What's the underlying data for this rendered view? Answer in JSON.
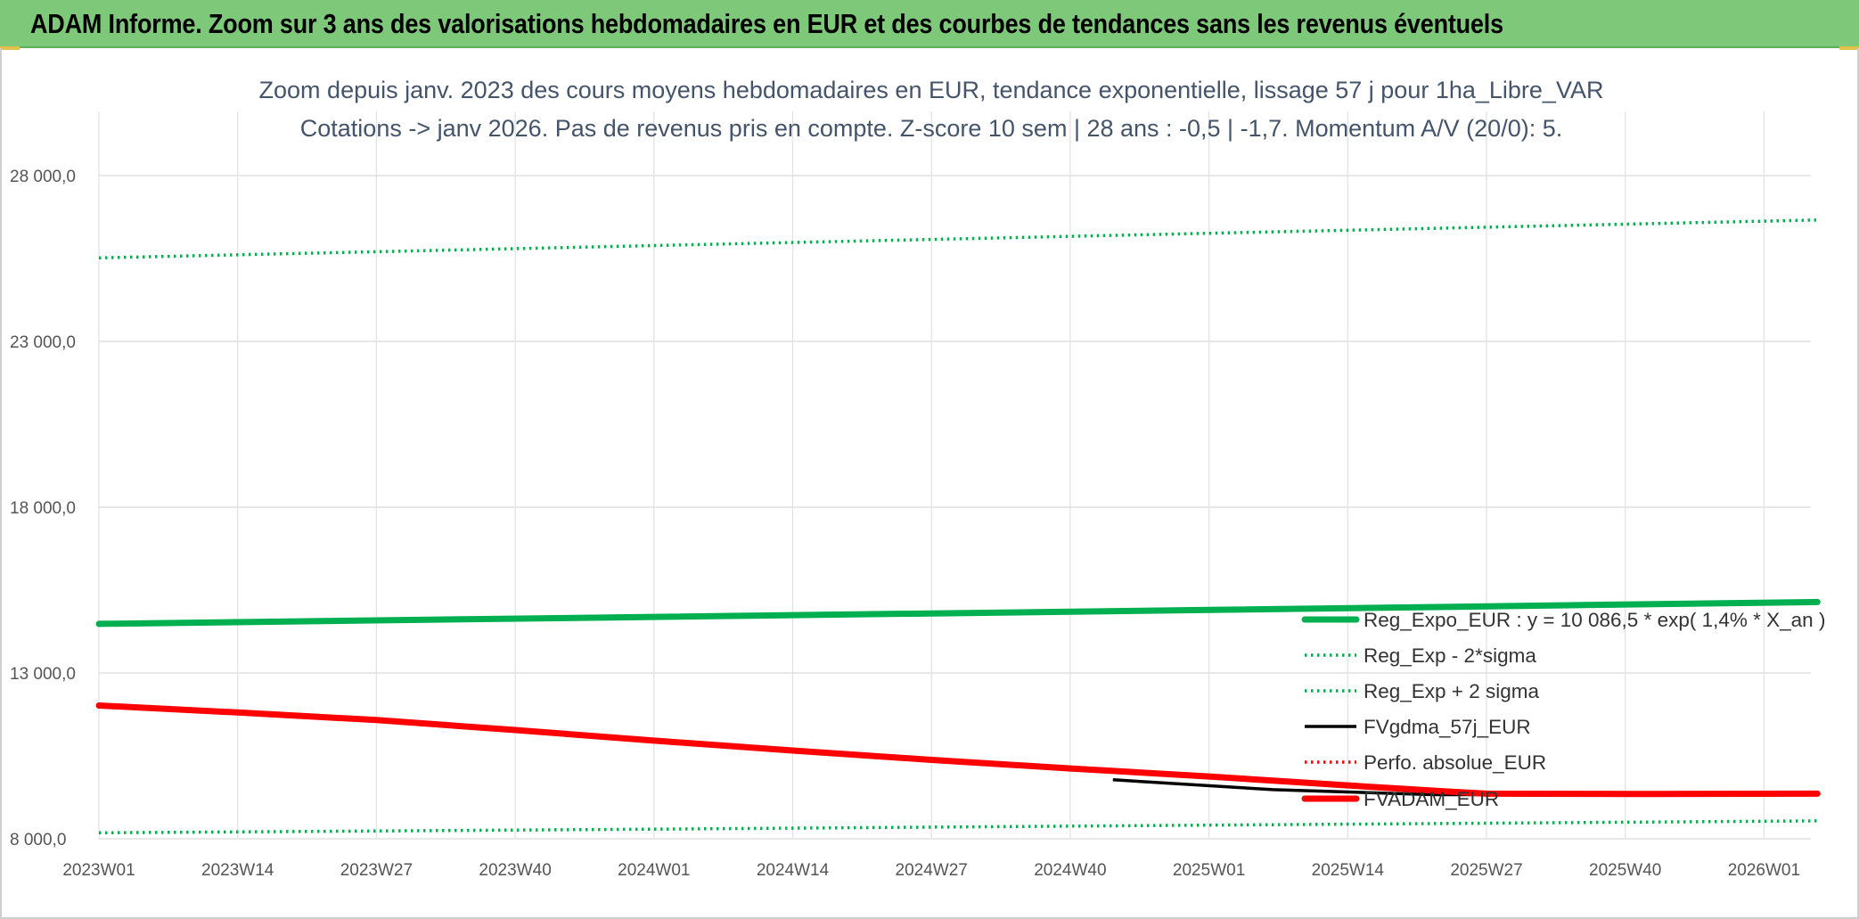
{
  "banner": {
    "title": "ADAM Informe. Zoom sur 3 ans des valorisations hebdomadaires en EUR et des courbes de tendances sans les revenus éventuels"
  },
  "colors": {
    "banner_bg": "#7ec87a",
    "green": "#00b050",
    "red": "#ff0000",
    "black": "#000000"
  },
  "chart_data": {
    "type": "line",
    "title_line1": "Zoom depuis janv. 2023 des cours moyens hebdomadaires en EUR, tendance exponentielle, lissage 57 j pour 1ha_Libre_VAR",
    "title_line2": "Cotations -> janv 2026. Pas de revenus pris en compte. Z-score 10 sem | 28 ans : -0,5 | -1,7. Momentum A/V (20/0): 5.",
    "x_ticks": [
      "2023W01",
      "2023W14",
      "2023W27",
      "2023W40",
      "2024W01",
      "2024W14",
      "2024W27",
      "2024W40",
      "2025W01",
      "2025W14",
      "2025W27",
      "2025W40",
      "2026W01"
    ],
    "x_range_weeks": [
      0,
      161
    ],
    "y_ticks": [
      "28 000,0",
      "23 000,0",
      "18 000,0",
      "13 000,0",
      "8 000,0"
    ],
    "ylim": [
      8000,
      28000
    ],
    "grid": true,
    "legend_position": "bottom-right inside plot",
    "series": [
      {
        "name": "Reg_Expo_EUR : y = 10 086,5 * exp( 1,4% *  X_an )",
        "style": "solid-thick",
        "color": "#00b050",
        "x_week": [
          0,
          52,
          104,
          161
        ],
        "values": [
          14480,
          14690,
          14900,
          15140
        ]
      },
      {
        "name": "Reg_Exp - 2*sigma",
        "style": "dotted",
        "color": "#00b050",
        "x_week": [
          0,
          52,
          104,
          161
        ],
        "values": [
          8180,
          8290,
          8410,
          8540
        ]
      },
      {
        "name": "Reg_Exp + 2 sigma",
        "style": "dotted",
        "color": "#00b050",
        "x_week": [
          0,
          52,
          104,
          161
        ],
        "values": [
          25520,
          25890,
          26260,
          26660
        ]
      },
      {
        "name": "FVgdma_57j_EUR",
        "style": "solid",
        "color": "#000000",
        "x_week": [
          95,
          110,
          125,
          140,
          161
        ],
        "values": [
          9780,
          9480,
          9330,
          9330,
          9350
        ]
      },
      {
        "name": "Perfo. absolue_EUR",
        "style": "dotted",
        "color": "#ff0000",
        "x_week": [],
        "values": []
      },
      {
        "name": "FVADAM_EUR",
        "style": "solid-thick",
        "color": "#ff0000",
        "x_week": [
          0,
          13,
          26,
          39,
          52,
          65,
          78,
          91,
          104,
          117,
          126,
          130,
          145,
          161
        ],
        "values": [
          12020,
          11810,
          11580,
          11280,
          10960,
          10660,
          10380,
          10120,
          9880,
          9610,
          9430,
          9360,
          9350,
          9360
        ]
      }
    ]
  }
}
